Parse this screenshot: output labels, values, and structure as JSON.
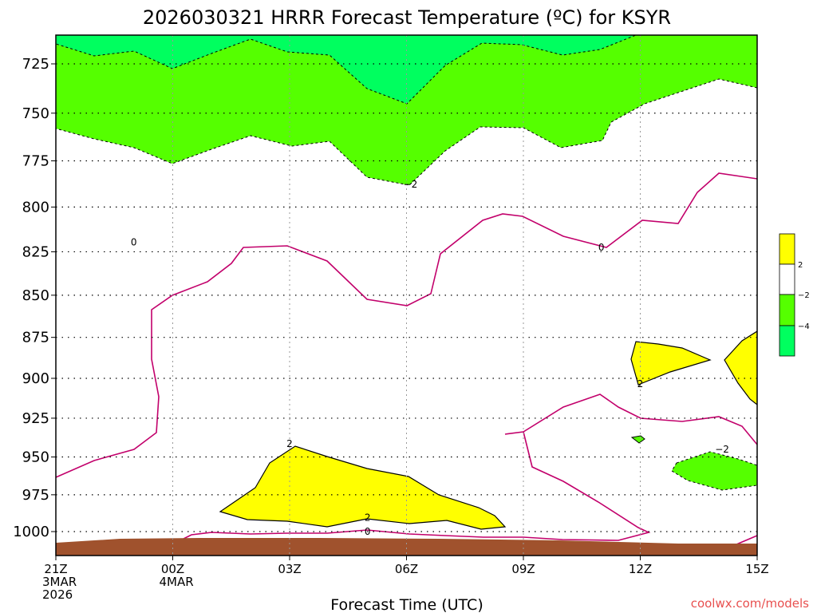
{
  "chart_data": {
    "type": "contour",
    "title": "2026030321 HRRR Forecast Temperature (ºC) for KSYR",
    "xlabel": "Forecast Time (UTC)",
    "ylabel": "",
    "credit": "coolwx.com/models",
    "x_ticks": [
      {
        "t": 0,
        "lines": [
          "21Z",
          "3MAR",
          "2026"
        ]
      },
      {
        "t": 3,
        "lines": [
          "00Z",
          "4MAR"
        ]
      },
      {
        "t": 6,
        "lines": [
          "03Z"
        ]
      },
      {
        "t": 9,
        "lines": [
          "06Z"
        ]
      },
      {
        "t": 12,
        "lines": [
          "09Z"
        ]
      },
      {
        "t": 15,
        "lines": [
          "12Z"
        ]
      },
      {
        "t": 18,
        "lines": [
          "15Z"
        ]
      }
    ],
    "y_ticks": [
      725,
      750,
      775,
      800,
      825,
      850,
      875,
      900,
      925,
      950,
      975,
      1000
    ],
    "xlim": [
      0,
      18
    ],
    "ylim": [
      713,
      1014
    ],
    "y_scale": "log-pressure",
    "grid": true,
    "colors": {
      "lt_minus4": "#00ff5f",
      "minus4_to_minus2": "#55ff00",
      "minus2_to_2": "#ffffff",
      "gt_2": "#ffff00",
      "ground": "#a0522d",
      "zero_line": "#c2006b",
      "credit": "#e8504f"
    },
    "legend": {
      "placement": "right",
      "labels": [
        "2",
        "−2",
        "−4"
      ]
    },
    "contour_labels": [
      {
        "text": "−2",
        "t": 9.1,
        "p": 788
      },
      {
        "text": "0",
        "t": 2.0,
        "p": 820
      },
      {
        "text": "0",
        "t": 14.0,
        "p": 823
      },
      {
        "text": "2",
        "t": 6.0,
        "p": 942
      },
      {
        "text": "2",
        "t": 8.0,
        "p": 991
      },
      {
        "text": "0",
        "t": 8.0,
        "p": 1000.5
      },
      {
        "text": "2",
        "t": 15.0,
        "p": 904
      },
      {
        "text": "−2",
        "t": 17.1,
        "p": 945.5
      }
    ]
  }
}
